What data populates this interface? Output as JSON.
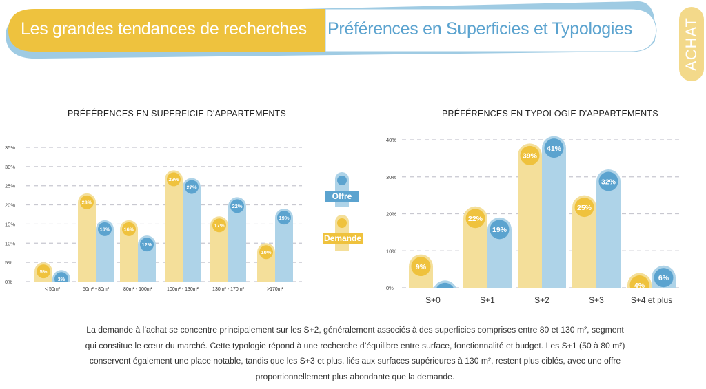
{
  "header": {
    "section_title": "Les grandes tendances de recherches",
    "subtitle": "Préférences en Superficies et Typologies",
    "side_tab": "ACHAT"
  },
  "colors": {
    "demande_bar": "#f4df9a",
    "demande_dot": "#efc23d",
    "offre_bar": "#aed3e8",
    "offre_dot": "#5ba3cf",
    "banner_yellow": "#eec23e",
    "banner_blue": "#9fcbe3",
    "grid": "#c8c8d0"
  },
  "legend": {
    "items": [
      {
        "label": "Offre",
        "series": "offre"
      },
      {
        "label": "Demande",
        "series": "demande"
      }
    ]
  },
  "chart_data": [
    {
      "type": "bar",
      "title": "PRÉFÉRENCES EN SUPERFICIE D'APPARTEMENTS",
      "xlabel": "",
      "ylabel": "",
      "categories": [
        "< 50m²",
        "50m² - 80m²",
        "80m² - 100m²",
        "100m² - 130m²",
        "130m² - 170m²",
        ">170m²"
      ],
      "series": [
        {
          "name": "Demande",
          "values": [
            5,
            23,
            16,
            29,
            17,
            10
          ]
        },
        {
          "name": "Offre",
          "values": [
            3,
            16,
            12,
            27,
            22,
            19
          ]
        }
      ],
      "ylim": [
        0,
        35
      ],
      "yticks": [
        0,
        5,
        10,
        15,
        20,
        25,
        30,
        35
      ],
      "ytick_labels": [
        "0%",
        "5%",
        "10%",
        "15%",
        "20%",
        "25%",
        "30%",
        "35%"
      ],
      "grid": true,
      "legend_position": "right"
    },
    {
      "type": "bar",
      "title": "PRÉFÉRENCES EN TYPOLOGIE D'APPARTEMENTS",
      "xlabel": "",
      "ylabel": "",
      "categories": [
        "S+0",
        "S+1",
        "S+2",
        "S+3",
        "S+4 et plus"
      ],
      "series": [
        {
          "name": "Demande",
          "values": [
            9,
            22,
            39,
            25,
            4
          ]
        },
        {
          "name": "Offre",
          "values": [
            2,
            19,
            41,
            32,
            6
          ]
        }
      ],
      "ylim": [
        0,
        40
      ],
      "yticks": [
        0,
        10,
        20,
        30,
        40
      ],
      "ytick_labels": [
        "0%",
        "10%",
        "20%",
        "30%",
        "40%"
      ],
      "grid": true,
      "legend_position": "left"
    }
  ],
  "paragraph": "La demande à l’achat se concentre principalement sur les S+2, généralement associés à des superficies comprises entre 80 et 130 m², segment qui constitue le cœur du marché. Cette typologie répond à une recherche d’équilibre entre surface, fonctionnalité et budget. Les S+1 (50 à 80 m²) conservent également une place notable, tandis que les S+3 et plus, liés aux surfaces supérieures à 130 m², restent plus ciblés, avec une offre proportionnellement plus abondante que la demande."
}
